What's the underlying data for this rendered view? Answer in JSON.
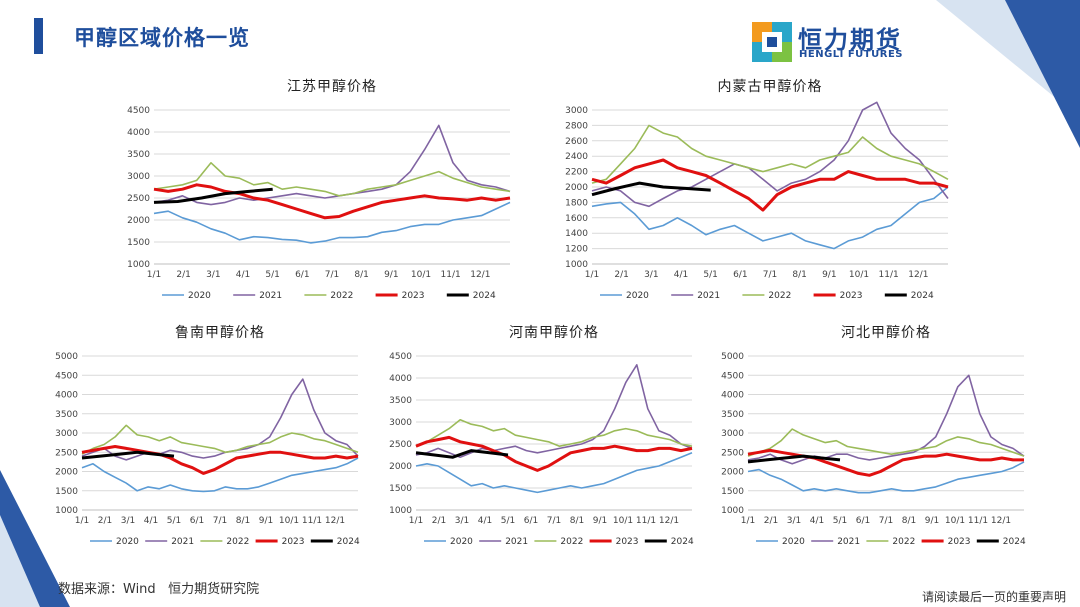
{
  "page": {
    "title": "甲醇区域价格一览",
    "logo_cn": "恒力期货",
    "logo_en": "HENGLI FUTURES",
    "source": "数据来源：Wind   恒力期货研究院",
    "disclaimer": "请阅读最后一页的重要声明",
    "colors": {
      "accent": "#1f4e9c",
      "logo_orange": "#f39a1e",
      "logo_green": "#7cc242",
      "logo_teal": "#2aa6c9"
    }
  },
  "chart_data": [
    {
      "id": "jiangsu",
      "type": "line",
      "title": "江苏甲醇价格",
      "yticks": [
        "1000",
        "1500",
        "2000",
        "2500",
        "3000",
        "3500",
        "4000",
        "4500"
      ],
      "ylim": [
        1000,
        4500
      ],
      "xticks": [
        "1/1",
        "2/1",
        "3/1",
        "4/1",
        "5/1",
        "6/1",
        "7/1",
        "8/1",
        "9/1",
        "10/1",
        "11/1",
        "12/1"
      ],
      "series": [
        {
          "name": "2020",
          "color": "#5b9bd5",
          "width": 1.6,
          "values": [
            2150,
            2200,
            2050,
            1950,
            1800,
            1700,
            1550,
            1620,
            1600,
            1560,
            1540,
            1480,
            1520,
            1600,
            1600,
            1620,
            1720,
            1760,
            1850,
            1900,
            1900,
            2000,
            2050,
            2100,
            2250,
            2400
          ]
        },
        {
          "name": "2021",
          "color": "#8064a2",
          "width": 1.6,
          "values": [
            2400,
            2450,
            2550,
            2400,
            2350,
            2400,
            2500,
            2450,
            2500,
            2550,
            2600,
            2550,
            2500,
            2550,
            2600,
            2650,
            2700,
            2800,
            3100,
            3600,
            4150,
            3300,
            2900,
            2800,
            2750,
            2650
          ]
        },
        {
          "name": "2022",
          "color": "#9bbb59",
          "width": 1.6,
          "values": [
            2700,
            2750,
            2800,
            2900,
            3300,
            3000,
            2950,
            2800,
            2850,
            2700,
            2750,
            2700,
            2650,
            2550,
            2600,
            2700,
            2750,
            2800,
            2900,
            3000,
            3100,
            2950,
            2850,
            2750,
            2700,
            2650
          ]
        },
        {
          "name": "2023",
          "color": "#e01010",
          "width": 3,
          "values": [
            2700,
            2650,
            2700,
            2800,
            2750,
            2650,
            2600,
            2500,
            2450,
            2350,
            2250,
            2150,
            2050,
            2080,
            2200,
            2300,
            2400,
            2450,
            2500,
            2550,
            2500,
            2480,
            2450,
            2500,
            2450,
            2500
          ]
        },
        {
          "name": "2024",
          "color": "#000000",
          "width": 3,
          "values": [
            2400,
            2420,
            2500,
            2600,
            2650,
            2700
          ],
          "partial_end": 4
        }
      ]
    },
    {
      "id": "neimenggu",
      "type": "line",
      "title": "内蒙古甲醇价格",
      "yticks": [
        "1000",
        "1200",
        "1400",
        "1600",
        "1800",
        "2000",
        "2200",
        "2400",
        "2600",
        "2800",
        "3000"
      ],
      "ylim": [
        1000,
        3000
      ],
      "xticks": [
        "1/1",
        "2/1",
        "3/1",
        "4/1",
        "5/1",
        "6/1",
        "7/1",
        "8/1",
        "9/1",
        "10/1",
        "11/1",
        "12/1"
      ],
      "series": [
        {
          "name": "2020",
          "color": "#5b9bd5",
          "width": 1.6,
          "values": [
            1750,
            1780,
            1800,
            1650,
            1450,
            1500,
            1600,
            1500,
            1380,
            1450,
            1500,
            1400,
            1300,
            1350,
            1400,
            1300,
            1250,
            1200,
            1300,
            1350,
            1450,
            1500,
            1650,
            1800,
            1850,
            2000
          ]
        },
        {
          "name": "2021",
          "color": "#8064a2",
          "width": 1.6,
          "values": [
            1950,
            2000,
            1950,
            1800,
            1750,
            1850,
            1950,
            2000,
            2100,
            2200,
            2300,
            2250,
            2100,
            1950,
            2050,
            2100,
            2200,
            2350,
            2600,
            3000,
            3100,
            2700,
            2500,
            2350,
            2100,
            1850
          ]
        },
        {
          "name": "2022",
          "color": "#9bbb59",
          "width": 1.6,
          "values": [
            2050,
            2100,
            2300,
            2500,
            2800,
            2700,
            2650,
            2500,
            2400,
            2350,
            2300,
            2250,
            2200,
            2250,
            2300,
            2250,
            2350,
            2400,
            2450,
            2650,
            2500,
            2400,
            2350,
            2300,
            2200,
            2100
          ]
        },
        {
          "name": "2023",
          "color": "#e01010",
          "width": 3,
          "values": [
            2100,
            2050,
            2150,
            2250,
            2300,
            2350,
            2250,
            2200,
            2150,
            2050,
            1950,
            1850,
            1700,
            1900,
            2000,
            2050,
            2100,
            2100,
            2200,
            2150,
            2100,
            2100,
            2100,
            2050,
            2050,
            2000
          ]
        },
        {
          "name": "2024",
          "color": "#000000",
          "width": 3,
          "values": [
            1900,
            1980,
            2050,
            2000,
            1980,
            1960
          ],
          "partial_end": 4
        }
      ]
    },
    {
      "id": "lunan",
      "type": "line",
      "title": "鲁南甲醇价格",
      "yticks": [
        "1000",
        "1500",
        "2000",
        "2500",
        "3000",
        "3500",
        "4000",
        "4500",
        "5000"
      ],
      "ylim": [
        1000,
        5000
      ],
      "xticks": [
        "1/1",
        "2/1",
        "3/1",
        "4/1",
        "5/1",
        "6/1",
        "7/1",
        "8/1",
        "9/1",
        "10/1",
        "11/1",
        "12/1"
      ],
      "series": [
        {
          "name": "2020",
          "color": "#5b9bd5",
          "width": 1.6,
          "values": [
            2100,
            2200,
            2000,
            1850,
            1700,
            1500,
            1600,
            1550,
            1650,
            1550,
            1500,
            1480,
            1500,
            1600,
            1550,
            1550,
            1600,
            1700,
            1800,
            1900,
            1950,
            2000,
            2050,
            2100,
            2200,
            2350
          ]
        },
        {
          "name": "2021",
          "color": "#8064a2",
          "width": 1.6,
          "values": [
            2400,
            2500,
            2600,
            2400,
            2300,
            2400,
            2500,
            2450,
            2550,
            2500,
            2400,
            2350,
            2400,
            2500,
            2550,
            2600,
            2700,
            2900,
            3400,
            4000,
            4400,
            3600,
            3000,
            2800,
            2700,
            2400
          ]
        },
        {
          "name": "2022",
          "color": "#9bbb59",
          "width": 1.6,
          "values": [
            2450,
            2600,
            2700,
            2900,
            3200,
            2950,
            2900,
            2800,
            2900,
            2750,
            2700,
            2650,
            2600,
            2500,
            2550,
            2650,
            2700,
            2750,
            2900,
            3000,
            2950,
            2850,
            2800,
            2700,
            2600,
            2500
          ]
        },
        {
          "name": "2023",
          "color": "#e01010",
          "width": 3,
          "values": [
            2500,
            2550,
            2600,
            2650,
            2600,
            2550,
            2500,
            2450,
            2350,
            2200,
            2100,
            1950,
            2050,
            2200,
            2350,
            2400,
            2450,
            2500,
            2500,
            2450,
            2400,
            2350,
            2350,
            2400,
            2350,
            2400
          ]
        },
        {
          "name": "2024",
          "color": "#000000",
          "width": 3,
          "values": [
            2350,
            2400,
            2450,
            2500,
            2450,
            2400
          ],
          "partial_end": 4
        }
      ]
    },
    {
      "id": "henan",
      "type": "line",
      "title": "河南甲醇价格",
      "yticks": [
        "1000",
        "1500",
        "2000",
        "2500",
        "3000",
        "3500",
        "4000",
        "4500"
      ],
      "ylim": [
        1000,
        4500
      ],
      "xticks": [
        "1/1",
        "2/1",
        "3/1",
        "4/1",
        "5/1",
        "6/1",
        "7/1",
        "8/1",
        "9/1",
        "10/1",
        "11/1",
        "12/1"
      ],
      "series": [
        {
          "name": "2020",
          "color": "#5b9bd5",
          "width": 1.6,
          "values": [
            2000,
            2050,
            2000,
            1850,
            1700,
            1550,
            1600,
            1500,
            1550,
            1500,
            1450,
            1400,
            1450,
            1500,
            1550,
            1500,
            1550,
            1600,
            1700,
            1800,
            1900,
            1950,
            2000,
            2100,
            2200,
            2300
          ]
        },
        {
          "name": "2021",
          "color": "#8064a2",
          "width": 1.6,
          "values": [
            2250,
            2300,
            2400,
            2300,
            2200,
            2300,
            2400,
            2350,
            2400,
            2450,
            2350,
            2300,
            2350,
            2400,
            2450,
            2500,
            2600,
            2800,
            3300,
            3900,
            4300,
            3300,
            2800,
            2700,
            2500,
            2400
          ]
        },
        {
          "name": "2022",
          "color": "#9bbb59",
          "width": 1.6,
          "values": [
            2450,
            2550,
            2700,
            2850,
            3050,
            2950,
            2900,
            2800,
            2850,
            2700,
            2650,
            2600,
            2550,
            2450,
            2500,
            2550,
            2650,
            2700,
            2800,
            2850,
            2800,
            2700,
            2650,
            2600,
            2500,
            2450
          ]
        },
        {
          "name": "2023",
          "color": "#e01010",
          "width": 3,
          "values": [
            2450,
            2550,
            2600,
            2650,
            2550,
            2500,
            2450,
            2350,
            2250,
            2100,
            2000,
            1900,
            2000,
            2150,
            2300,
            2350,
            2400,
            2400,
            2450,
            2400,
            2350,
            2350,
            2400,
            2400,
            2350,
            2400
          ]
        },
        {
          "name": "2024",
          "color": "#000000",
          "width": 3,
          "values": [
            2300,
            2250,
            2200,
            2350,
            2300,
            2250
          ],
          "partial_end": 4
        }
      ]
    },
    {
      "id": "hebei",
      "type": "line",
      "title": "河北甲醇价格",
      "yticks": [
        "1000",
        "1500",
        "2000",
        "2500",
        "3000",
        "3500",
        "4000",
        "4500",
        "5000"
      ],
      "ylim": [
        1000,
        5000
      ],
      "xticks": [
        "1/1",
        "2/1",
        "3/1",
        "4/1",
        "5/1",
        "6/1",
        "7/1",
        "8/1",
        "9/1",
        "10/1",
        "11/1",
        "12/1"
      ],
      "series": [
        {
          "name": "2020",
          "color": "#5b9bd5",
          "width": 1.6,
          "values": [
            2000,
            2050,
            1900,
            1800,
            1650,
            1500,
            1550,
            1500,
            1550,
            1500,
            1450,
            1450,
            1500,
            1550,
            1500,
            1500,
            1550,
            1600,
            1700,
            1800,
            1850,
            1900,
            1950,
            2000,
            2100,
            2250
          ]
        },
        {
          "name": "2021",
          "color": "#8064a2",
          "width": 1.6,
          "values": [
            2300,
            2350,
            2450,
            2300,
            2200,
            2300,
            2400,
            2350,
            2450,
            2450,
            2350,
            2300,
            2350,
            2400,
            2450,
            2500,
            2650,
            2900,
            3500,
            4200,
            4500,
            3500,
            2900,
            2700,
            2600,
            2400
          ]
        },
        {
          "name": "2022",
          "color": "#9bbb59",
          "width": 1.6,
          "values": [
            2400,
            2500,
            2600,
            2800,
            3100,
            2950,
            2850,
            2750,
            2800,
            2650,
            2600,
            2550,
            2500,
            2450,
            2500,
            2550,
            2600,
            2650,
            2800,
            2900,
            2850,
            2750,
            2700,
            2600,
            2500,
            2400
          ]
        },
        {
          "name": "2023",
          "color": "#e01010",
          "width": 3,
          "values": [
            2450,
            2500,
            2550,
            2500,
            2450,
            2400,
            2350,
            2250,
            2150,
            2050,
            1950,
            1900,
            2000,
            2150,
            2300,
            2350,
            2400,
            2400,
            2450,
            2400,
            2350,
            2300,
            2300,
            2350,
            2300,
            2300
          ]
        },
        {
          "name": "2024",
          "color": "#000000",
          "width": 3,
          "values": [
            2250,
            2300,
            2350,
            2400,
            2350,
            2300
          ],
          "partial_end": 4
        }
      ]
    }
  ]
}
